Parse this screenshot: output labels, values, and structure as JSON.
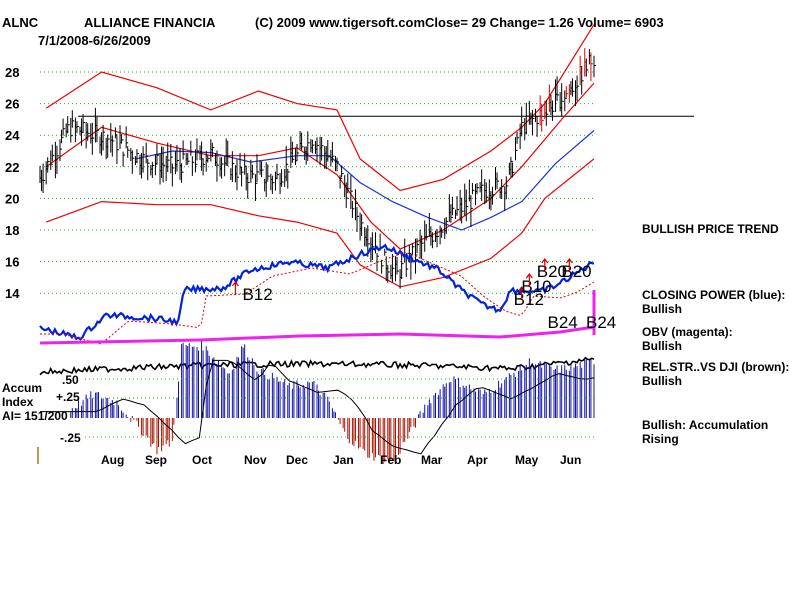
{
  "header": {
    "symbol": "ALNC",
    "company": "ALLIANCE FINANCIA",
    "copyright": "(C) 2009 www.tigersoft.com",
    "quote": "Close=  29  Change= 1.26 Volume= 6903",
    "date_range": "7/1/2008-6/26/2009"
  },
  "accum_panel": {
    "title_line1": "Accum",
    "title_line2": "Index",
    "ai_line": "AI= 151/200",
    "ticks": [
      ".50",
      "+.25",
      "-.25"
    ]
  },
  "notes": [
    {
      "line1": "BULLISH PRICE TREND",
      "line2": ""
    },
    {
      "line1": "CLOSING POWER (blue):",
      "line2": "Bullish"
    },
    {
      "line1": "OBV (magenta):",
      "line2": "Bullish"
    },
    {
      "line1": "REL.STR..VS DJI (brown):",
      "line2": "Bullish"
    },
    {
      "line1": "Bullish: Accumulation Rising",
      "line2": ""
    }
  ],
  "colors": {
    "price_bar": "#000000",
    "band": "#ee0000",
    "ma50": "#1a33dd",
    "closing_power": "#0022dd",
    "cp_ma": "#dd0000",
    "obv": "#ee22ee",
    "rel_strength": "#000000",
    "accum_positive": "#1111aa",
    "accum_negative": "#aa1100",
    "grid": "#22aa22",
    "arrow": "#dd0000"
  },
  "chart_data": {
    "type": "line",
    "title": "ALLIANCE FINANCIA",
    "xlabel": "",
    "ylabel": "",
    "ylim": [
      13,
      29.5
    ],
    "yticks": [
      14,
      16,
      18,
      20,
      22,
      24,
      26,
      28
    ],
    "months": [
      "Aug",
      "Sep",
      "Oct",
      "Nov",
      "Dec",
      "Jan",
      "Feb",
      "Mar",
      "Apr",
      "May",
      "Jun"
    ],
    "grid": "horizontal dotted",
    "price_key": [
      {
        "date": "2008-07-01",
        "value": 21.3
      },
      {
        "date": "2008-07-20",
        "value": 24.5
      },
      {
        "date": "2008-08-15",
        "value": 23.8
      },
      {
        "date": "2008-09-05",
        "value": 22.5
      },
      {
        "date": "2008-09-25",
        "value": 22.0
      },
      {
        "date": "2008-10-20",
        "value": 22.8
      },
      {
        "date": "2008-11-10",
        "value": 21.5
      },
      {
        "date": "2008-12-01",
        "value": 21.2
      },
      {
        "date": "2008-12-25",
        "value": 23.8
      },
      {
        "date": "2009-01-10",
        "value": 22.0
      },
      {
        "date": "2009-01-25",
        "value": 18.5
      },
      {
        "date": "2009-02-10",
        "value": 16.0
      },
      {
        "date": "2009-02-18",
        "value": 15.2
      },
      {
        "date": "2009-03-05",
        "value": 17.0
      },
      {
        "date": "2009-03-25",
        "value": 18.8
      },
      {
        "date": "2009-04-15",
        "value": 20.5
      },
      {
        "date": "2009-05-01",
        "value": 21.0
      },
      {
        "date": "2009-05-10",
        "value": 24.5
      },
      {
        "date": "2009-05-25",
        "value": 25.5
      },
      {
        "date": "2009-06-10",
        "value": 26.8
      },
      {
        "date": "2009-06-26",
        "value": 29.0
      }
    ],
    "resistance_level": 25.2,
    "upper_band": [
      {
        "date": "2008-07-05",
        "value": 25.7
      },
      {
        "date": "2008-08-10",
        "value": 28.0
      },
      {
        "date": "2008-09-15",
        "value": 27.0
      },
      {
        "date": "2008-10-20",
        "value": 25.6
      },
      {
        "date": "2008-11-20",
        "value": 26.8
      },
      {
        "date": "2008-12-15",
        "value": 26.0
      },
      {
        "date": "2009-01-10",
        "value": 25.6
      },
      {
        "date": "2009-01-25",
        "value": 22.5
      },
      {
        "date": "2009-02-20",
        "value": 20.5
      },
      {
        "date": "2009-03-20",
        "value": 21.2
      },
      {
        "date": "2009-04-20",
        "value": 23.0
      },
      {
        "date": "2009-05-10",
        "value": 24.5
      },
      {
        "date": "2009-05-25",
        "value": 26.0
      },
      {
        "date": "2009-06-26",
        "value": 31.0
      }
    ],
    "lower_band": [
      {
        "date": "2008-07-05",
        "value": 18.5
      },
      {
        "date": "2008-08-10",
        "value": 19.8
      },
      {
        "date": "2008-09-15",
        "value": 19.6
      },
      {
        "date": "2008-10-20",
        "value": 19.6
      },
      {
        "date": "2008-11-20",
        "value": 18.9
      },
      {
        "date": "2008-12-15",
        "value": 18.5
      },
      {
        "date": "2009-01-10",
        "value": 17.8
      },
      {
        "date": "2009-01-25",
        "value": 15.8
      },
      {
        "date": "2009-02-20",
        "value": 14.4
      },
      {
        "date": "2009-03-20",
        "value": 15.0
      },
      {
        "date": "2009-04-20",
        "value": 16.2
      },
      {
        "date": "2009-05-10",
        "value": 17.8
      },
      {
        "date": "2009-05-25",
        "value": 20.0
      },
      {
        "date": "2009-06-26",
        "value": 22.5
      }
    ],
    "inner_band": [
      {
        "date": "2008-07-05",
        "value": 22.0
      },
      {
        "date": "2008-08-10",
        "value": 24.5
      },
      {
        "date": "2008-09-15",
        "value": 23.5
      },
      {
        "date": "2008-10-20",
        "value": 22.7
      },
      {
        "date": "2008-11-20",
        "value": 22.7
      },
      {
        "date": "2008-12-15",
        "value": 23.2
      },
      {
        "date": "2009-01-10",
        "value": 21.5
      },
      {
        "date": "2009-02-01",
        "value": 18.5
      },
      {
        "date": "2009-02-20",
        "value": 16.8
      },
      {
        "date": "2009-03-20",
        "value": 18.0
      },
      {
        "date": "2009-04-20",
        "value": 20.0
      },
      {
        "date": "2009-05-10",
        "value": 22.0
      },
      {
        "date": "2009-06-05",
        "value": 25.0
      },
      {
        "date": "2009-06-26",
        "value": 27.3
      }
    ],
    "ma50": [
      {
        "date": "2008-09-01",
        "value": 22.5
      },
      {
        "date": "2008-09-25",
        "value": 23.0
      },
      {
        "date": "2008-10-20",
        "value": 22.9
      },
      {
        "date": "2008-11-15",
        "value": 22.3
      },
      {
        "date": "2008-12-15",
        "value": 22.7
      },
      {
        "date": "2009-01-05",
        "value": 22.7
      },
      {
        "date": "2009-01-25",
        "value": 21.0
      },
      {
        "date": "2009-02-15",
        "value": 19.8
      },
      {
        "date": "2009-03-10",
        "value": 18.8
      },
      {
        "date": "2009-04-01",
        "value": 18.0
      },
      {
        "date": "2009-04-20",
        "value": 18.8
      },
      {
        "date": "2009-05-10",
        "value": 19.8
      },
      {
        "date": "2009-06-01",
        "value": 22.2
      },
      {
        "date": "2009-06-26",
        "value": 24.3
      }
    ],
    "signals": [
      {
        "label": "B12",
        "date": "2008-11-05"
      },
      {
        "label": "B12",
        "date": "2009-05-10"
      },
      {
        "label": "B10",
        "date": "2009-05-15"
      },
      {
        "label": "B20",
        "date": "2009-05-25"
      },
      {
        "label": "B20",
        "date": "2009-06-10"
      },
      {
        "label": "B24",
        "date": "2009-06-01"
      },
      {
        "label": "B24",
        "date": "2009-06-26"
      }
    ],
    "accumulation_index": [
      {
        "date": "2008-07-20",
        "value": 0.05
      },
      {
        "date": "2008-08-05",
        "value": 0.15
      },
      {
        "date": "2008-08-20",
        "value": 0.1
      },
      {
        "date": "2008-09-05",
        "value": -0.08
      },
      {
        "date": "2008-09-15",
        "value": -0.2
      },
      {
        "date": "2008-09-25",
        "value": -0.15
      },
      {
        "date": "2008-10-01",
        "value": 0.45
      },
      {
        "date": "2008-10-15",
        "value": 0.45
      },
      {
        "date": "2008-11-01",
        "value": 0.28
      },
      {
        "date": "2008-11-10",
        "value": 0.45
      },
      {
        "date": "2008-11-20",
        "value": 0.3
      },
      {
        "date": "2008-12-10",
        "value": 0.2
      },
      {
        "date": "2008-12-25",
        "value": 0.22
      },
      {
        "date": "2009-01-05",
        "value": 0.1
      },
      {
        "date": "2009-01-15",
        "value": -0.1
      },
      {
        "date": "2009-01-28",
        "value": -0.22
      },
      {
        "date": "2009-02-15",
        "value": -0.28
      },
      {
        "date": "2009-02-25",
        "value": -0.12
      },
      {
        "date": "2009-03-10",
        "value": 0.1
      },
      {
        "date": "2009-03-25",
        "value": 0.25
      },
      {
        "date": "2009-04-15",
        "value": 0.15
      },
      {
        "date": "2009-05-01",
        "value": 0.25
      },
      {
        "date": "2009-05-15",
        "value": 0.35
      },
      {
        "date": "2009-06-01",
        "value": 0.3
      },
      {
        "date": "2009-06-26",
        "value": 0.35
      }
    ],
    "closing_power_trend": "rising",
    "obv_trend": "rising",
    "rel_strength_trend": "rising"
  }
}
